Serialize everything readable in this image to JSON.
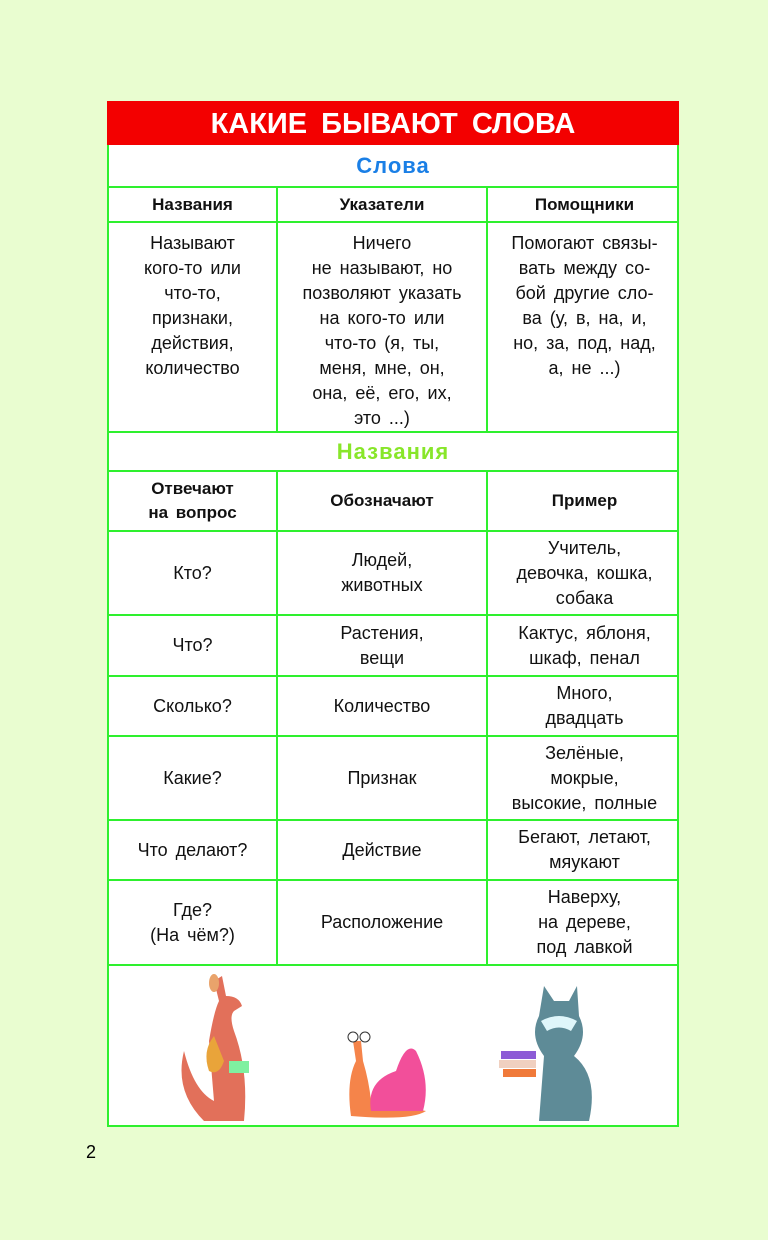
{
  "title": "КАКИЕ БЫВАЮТ СЛОВА",
  "section1": {
    "heading": "Слова",
    "heading_color": "#1a7fe6",
    "columns": [
      "Названия",
      "Указатели",
      "Помощники"
    ],
    "descriptions": [
      "Называют\nкого-то или\nчто-то,\nпризнаки,\nдействия,\nколичество",
      "Ничего\nне называют, но\nпозволяют указать\nна кого-то или\nчто-то (я, ты,\nменя, мне, он,\nона, её, его, их,\nэто ...)",
      "Помогают связы-\nвать между со-\nбой другие сло-\nва (у, в, на, и,\nно, за, под, над,\nа, не ...)"
    ]
  },
  "section2": {
    "heading": "Названия",
    "heading_color": "#88e62a",
    "columns": [
      "Отвечают\nна вопрос",
      "Обозначают",
      "Пример"
    ],
    "rows": [
      [
        "Кто?",
        "Людей,\nживотных",
        "Учитель,\nдевочка, кошка,\nсобака"
      ],
      [
        "Что?",
        "Растения,\nвещи",
        "Кактус, яблоня,\nшкаф, пенал"
      ],
      [
        "Сколько?",
        "Количество",
        "Много,\nдвадцать"
      ],
      [
        "Какие?",
        "Признак",
        "Зелёные,\nмокрые,\nвысокие, полные"
      ],
      [
        "Что делают?",
        "Действие",
        "Бегают, летают,\nмяукают"
      ],
      [
        "Где?\n(На чём?)",
        "Расположение",
        "Наверху,\nна дереве,\nпод лавкой"
      ]
    ]
  },
  "illustrations": [
    "kangaroo",
    "snail",
    "raccoon"
  ],
  "page_number": "2",
  "colors": {
    "title_bg": "#f30000",
    "border": "#2ef02e",
    "page_bg": "#e9fdd0"
  }
}
